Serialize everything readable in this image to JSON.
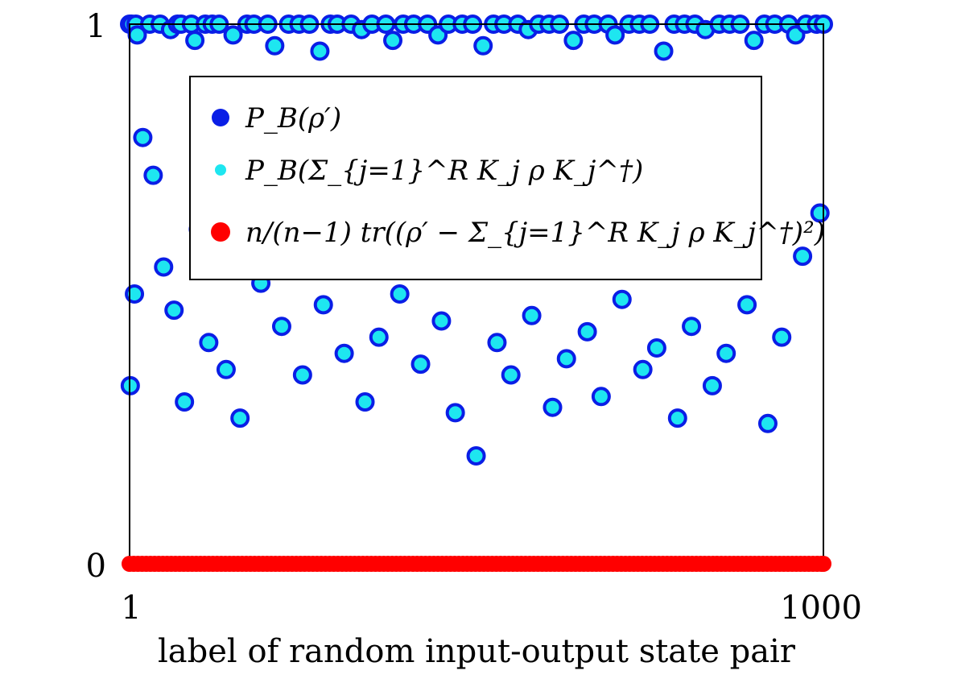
{
  "chart_data": {
    "type": "scatter",
    "title": "",
    "xlabel": "label of random input-output state pair",
    "ylabel": "",
    "xlim": [
      1,
      1000
    ],
    "ylim": [
      0,
      1
    ],
    "x_ticks": [
      "1",
      "1000"
    ],
    "y_ticks": [
      "0",
      "1"
    ],
    "legend_position": "upper-center",
    "grid": false,
    "colors": {
      "series_1": "#0a1ee6",
      "series_2": "#1ee6f0",
      "series_3": "#ff0000"
    },
    "series": [
      {
        "name": "P_B(ρ′)",
        "marker_color": "#0a1ee6",
        "note_values": "values shown per sampled point; 1000 points in total, sampled subset listed",
        "x": [
          1,
          4,
          10,
          12,
          30,
          45,
          60,
          70,
          75,
          90,
          95,
          110,
          120,
          130,
          150,
          170,
          180,
          200,
          210,
          230,
          245,
          260,
          275,
          290,
          300,
          320,
          335,
          350,
          370,
          380,
          395,
          410,
          430,
          445,
          460,
          480,
          495,
          510,
          525,
          540,
          560,
          575,
          590,
          605,
          620,
          640,
          655,
          670,
          690,
          700,
          720,
          735,
          750,
          770,
          785,
          800,
          815,
          830,
          850,
          865,
          880,
          900,
          915,
          930,
          950,
          960,
          975,
          990,
          1000,
          2,
          8,
          20,
          35,
          50,
          65,
          80,
          100,
          115,
          140,
          160,
          190,
          220,
          250,
          280,
          310,
          340,
          360,
          390,
          420,
          450,
          470,
          500,
          530,
          550,
          580,
          610,
          630,
          660,
          680,
          710,
          740,
          760,
          790,
          810,
          840,
          860,
          890,
          920,
          940,
          970,
          995
        ],
        "y": [
          1,
          1,
          1,
          0.98,
          1,
          1,
          0.99,
          1,
          1,
          1,
          0.97,
          1,
          1,
          1,
          0.98,
          1,
          1,
          1,
          0.96,
          1,
          1,
          1,
          0.95,
          1,
          1,
          1,
          0.99,
          1,
          1,
          0.97,
          1,
          1,
          1,
          0.98,
          1,
          1,
          1,
          0.96,
          1,
          1,
          1,
          0.99,
          1,
          1,
          1,
          0.97,
          1,
          1,
          1,
          0.98,
          1,
          1,
          1,
          0.95,
          1,
          1,
          1,
          0.99,
          1,
          1,
          1,
          0.97,
          1,
          1,
          1,
          0.98,
          1,
          1,
          1,
          0.33,
          0.5,
          0.79,
          0.72,
          0.55,
          0.47,
          0.3,
          0.62,
          0.41,
          0.36,
          0.27,
          0.52,
          0.44,
          0.35,
          0.48,
          0.39,
          0.3,
          0.42,
          0.5,
          0.37,
          0.45,
          0.28,
          0.2,
          0.41,
          0.35,
          0.46,
          0.29,
          0.38,
          0.43,
          0.31,
          0.49,
          0.36,
          0.4,
          0.27,
          0.44,
          0.33,
          0.39,
          0.48,
          0.26,
          0.42,
          0.57,
          0.65
        ]
      },
      {
        "name": "P_B(Σ_{j=1}^R K_j ρ K_j^†)",
        "marker_color": "#1ee6f0",
        "note_values": "coincides with P_B(ρ′) at every sampled point"
      },
      {
        "name": "(n/(n−1)) tr((ρ′ − Σ_{j=1}^R K_j ρ K_j^†)²)",
        "marker_color": "#ff0000",
        "note_values": "all 1000 values equal 0",
        "constant_value": 0,
        "count": 1000
      }
    ],
    "legend": [
      {
        "key": "s1",
        "text": "P_B(ρ′)"
      },
      {
        "key": "s2",
        "text": "P_B(Σ_{j=1}^R K_j ρ K_j^†)"
      },
      {
        "key": "s3",
        "text": "n/(n−1) tr((ρ′ − Σ_{j=1}^R K_j ρ K_j^†)²)"
      }
    ]
  }
}
